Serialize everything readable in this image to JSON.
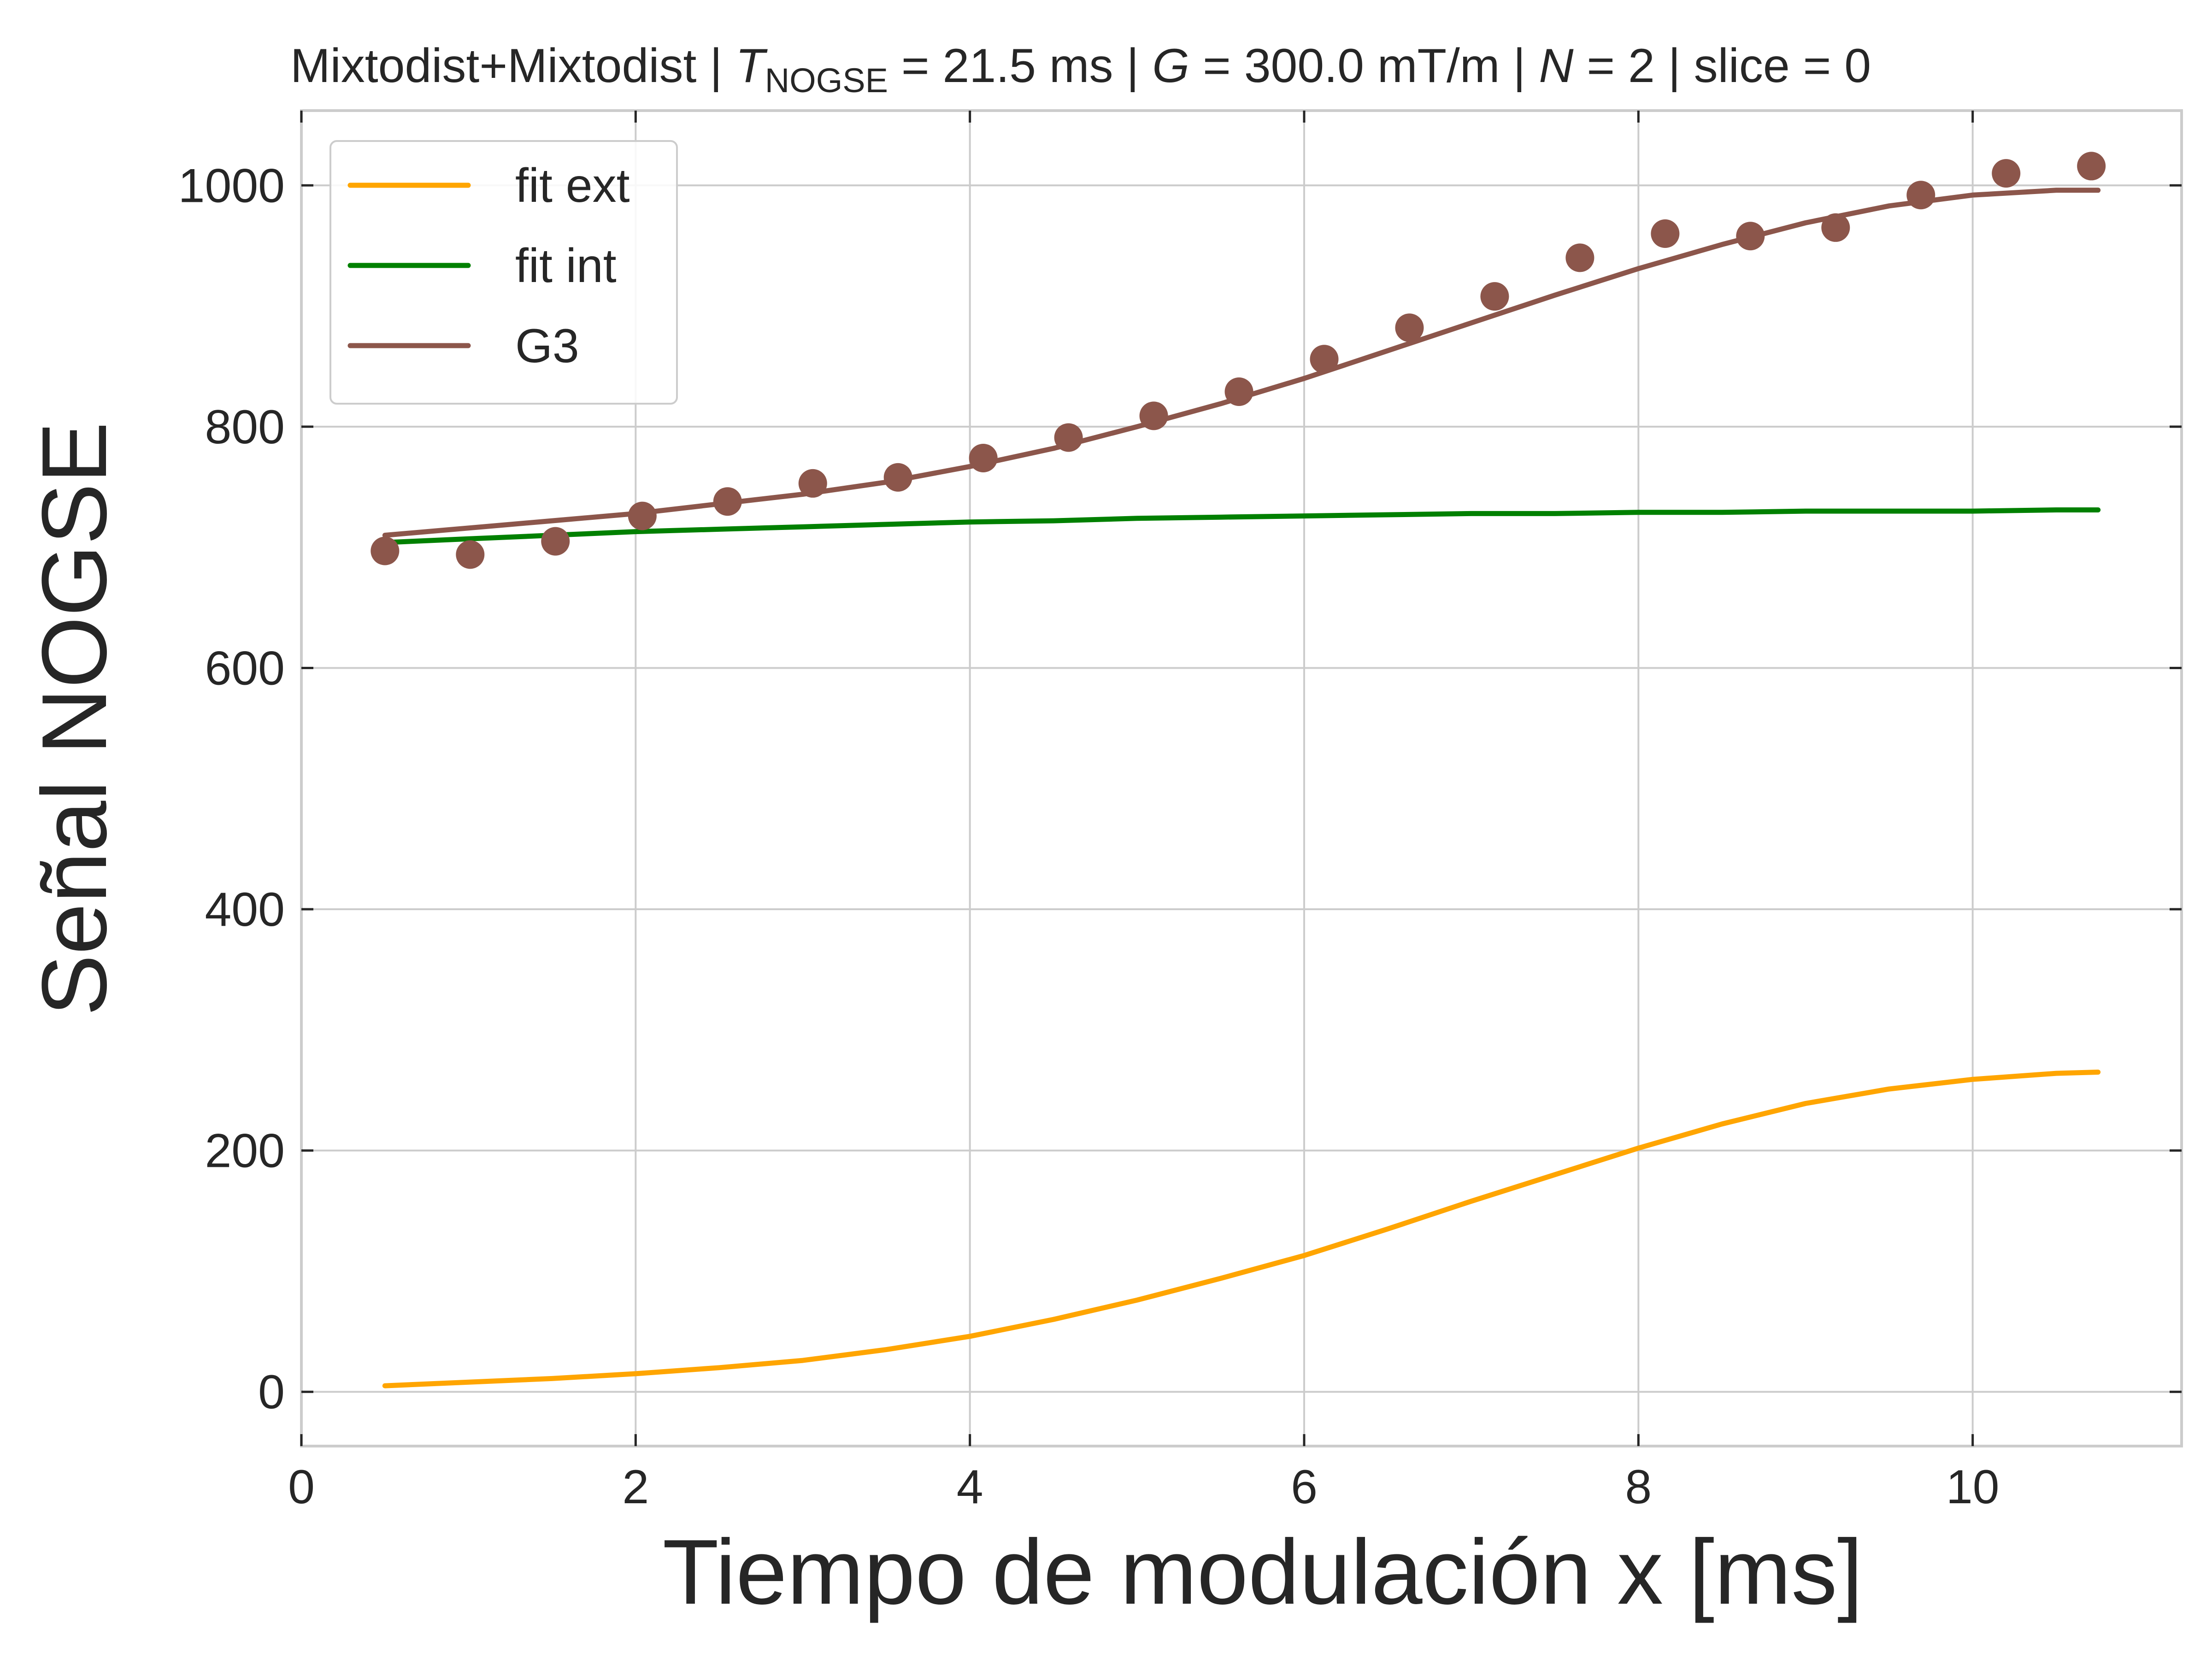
{
  "chart_data": {
    "type": "line",
    "title_parts": {
      "prefix": "Mixtodist+Mixtodist | ",
      "t_symbol": "T",
      "t_subscript": "NOGSE",
      "t_value": " = 21.5 ms | ",
      "g_symbol": "G",
      "g_value": " = 300.0 mT/m | ",
      "n_symbol": "N",
      "n_value": " = 2 | slice = 0"
    },
    "xlabel": "Tiempo de modulación x [ms]",
    "ylabel": "Señal NOGSE",
    "xlim": [
      0,
      11.25
    ],
    "ylim": [
      -45,
      1062
    ],
    "xticks": [
      0,
      2,
      4,
      6,
      8,
      10
    ],
    "yticks": [
      0,
      200,
      400,
      600,
      800,
      1000
    ],
    "grid": true,
    "legend_position": "upper-left",
    "series": [
      {
        "name": "fit ext",
        "kind": "line",
        "color": "#ffa500",
        "x": [
          0.5,
          1.0,
          1.5,
          2.0,
          2.5,
          3.0,
          3.5,
          4.0,
          4.5,
          5.0,
          5.5,
          6.0,
          6.5,
          7.0,
          7.5,
          8.0,
          8.5,
          9.0,
          9.5,
          10.0,
          10.5,
          10.75
        ],
        "values": [
          5,
          8,
          11,
          15,
          20,
          26,
          35,
          46,
          60,
          76,
          94,
          113,
          135,
          158,
          180,
          202,
          222,
          239,
          251,
          259,
          264,
          265
        ]
      },
      {
        "name": "fit int",
        "kind": "line",
        "color": "#008000",
        "x": [
          0.5,
          1.0,
          1.5,
          2.0,
          2.5,
          3.0,
          3.5,
          4.0,
          4.5,
          5.0,
          5.5,
          6.0,
          6.5,
          7.0,
          7.5,
          8.0,
          8.5,
          9.0,
          9.5,
          10.0,
          10.5,
          10.75
        ],
        "values": [
          704,
          707,
          710,
          713,
          715,
          717,
          719,
          721,
          722,
          724,
          725,
          726,
          727,
          728,
          728,
          729,
          729,
          730,
          730,
          730,
          731,
          731
        ]
      },
      {
        "name": "G3",
        "kind": "line",
        "color": "#8c564b",
        "x": [
          0.5,
          1.0,
          1.5,
          2.0,
          2.5,
          3.0,
          3.5,
          4.0,
          4.5,
          5.0,
          5.5,
          6.0,
          6.5,
          7.0,
          7.5,
          8.0,
          8.5,
          9.0,
          9.5,
          10.0,
          10.5,
          10.75
        ],
        "values": [
          710,
          716,
          722,
          728,
          736,
          744,
          754,
          767,
          782,
          800,
          819,
          840,
          863,
          886,
          909,
          931,
          951,
          969,
          983,
          992,
          996,
          996
        ]
      },
      {
        "kind": "scatter",
        "color": "#8c564b",
        "x": [
          0.5,
          1.01,
          1.52,
          2.04,
          2.55,
          3.06,
          3.57,
          4.08,
          4.59,
          5.1,
          5.61,
          6.12,
          6.63,
          7.14,
          7.65,
          8.16,
          8.67,
          9.18,
          9.69,
          10.2,
          10.71
        ],
        "values": [
          697,
          694,
          705,
          726,
          738,
          753,
          758,
          774,
          791,
          809,
          829,
          856,
          882,
          908,
          940,
          960,
          958,
          965,
          992,
          1010,
          1016
        ]
      }
    ]
  }
}
